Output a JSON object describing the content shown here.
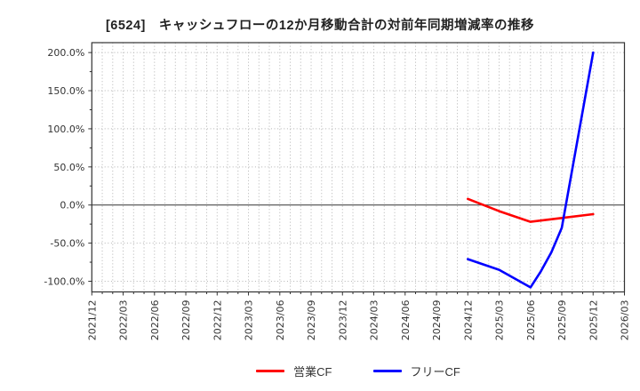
{
  "chart_data": {
    "type": "line",
    "title": "[6524]　キャッシュフローの12か月移動合計の対前年同期増減率の推移",
    "x_axis": {
      "start_month": "2021/12",
      "end_month": "2026/03",
      "tick_labels": [
        "2021/12",
        "2022/03",
        "2022/06",
        "2022/09",
        "2022/12",
        "2023/03",
        "2023/06",
        "2023/09",
        "2023/12",
        "2024/03",
        "2024/06",
        "2024/09",
        "2024/12",
        "2025/03",
        "2025/06",
        "2025/09",
        "2025/12",
        "2026/03"
      ],
      "gridline_every_months": 1,
      "label_rotation_deg": 90
    },
    "y_axis": {
      "tick_labels": [
        "200.0%",
        "150.0%",
        "100.0%",
        "50.0%",
        "0.0%",
        "-50.0%",
        "-100.0%"
      ],
      "tick_values": [
        200,
        150,
        100,
        50,
        0,
        -50,
        -100
      ],
      "unit": "%",
      "ylim": [
        -114,
        213
      ],
      "zero_line": true,
      "grid": true
    },
    "series": [
      {
        "name": "営業CF",
        "color": "#ff0000",
        "points": [
          [
            "2024/12",
            8
          ],
          [
            "2025/03",
            -8
          ],
          [
            "2025/06",
            -22
          ],
          [
            "2025/09",
            -17
          ],
          [
            "2025/12",
            -12
          ]
        ]
      },
      {
        "name": "フリーCF",
        "color": "#0000ff",
        "points": [
          [
            "2024/12",
            -71
          ],
          [
            "2025/03",
            -85
          ],
          [
            "2025/06",
            -108
          ],
          [
            "2025/07",
            -87
          ],
          [
            "2025/08",
            -62
          ],
          [
            "2025/09",
            -30
          ],
          [
            "2025/12",
            200
          ]
        ]
      }
    ],
    "legend": {
      "position": "bottom"
    }
  }
}
